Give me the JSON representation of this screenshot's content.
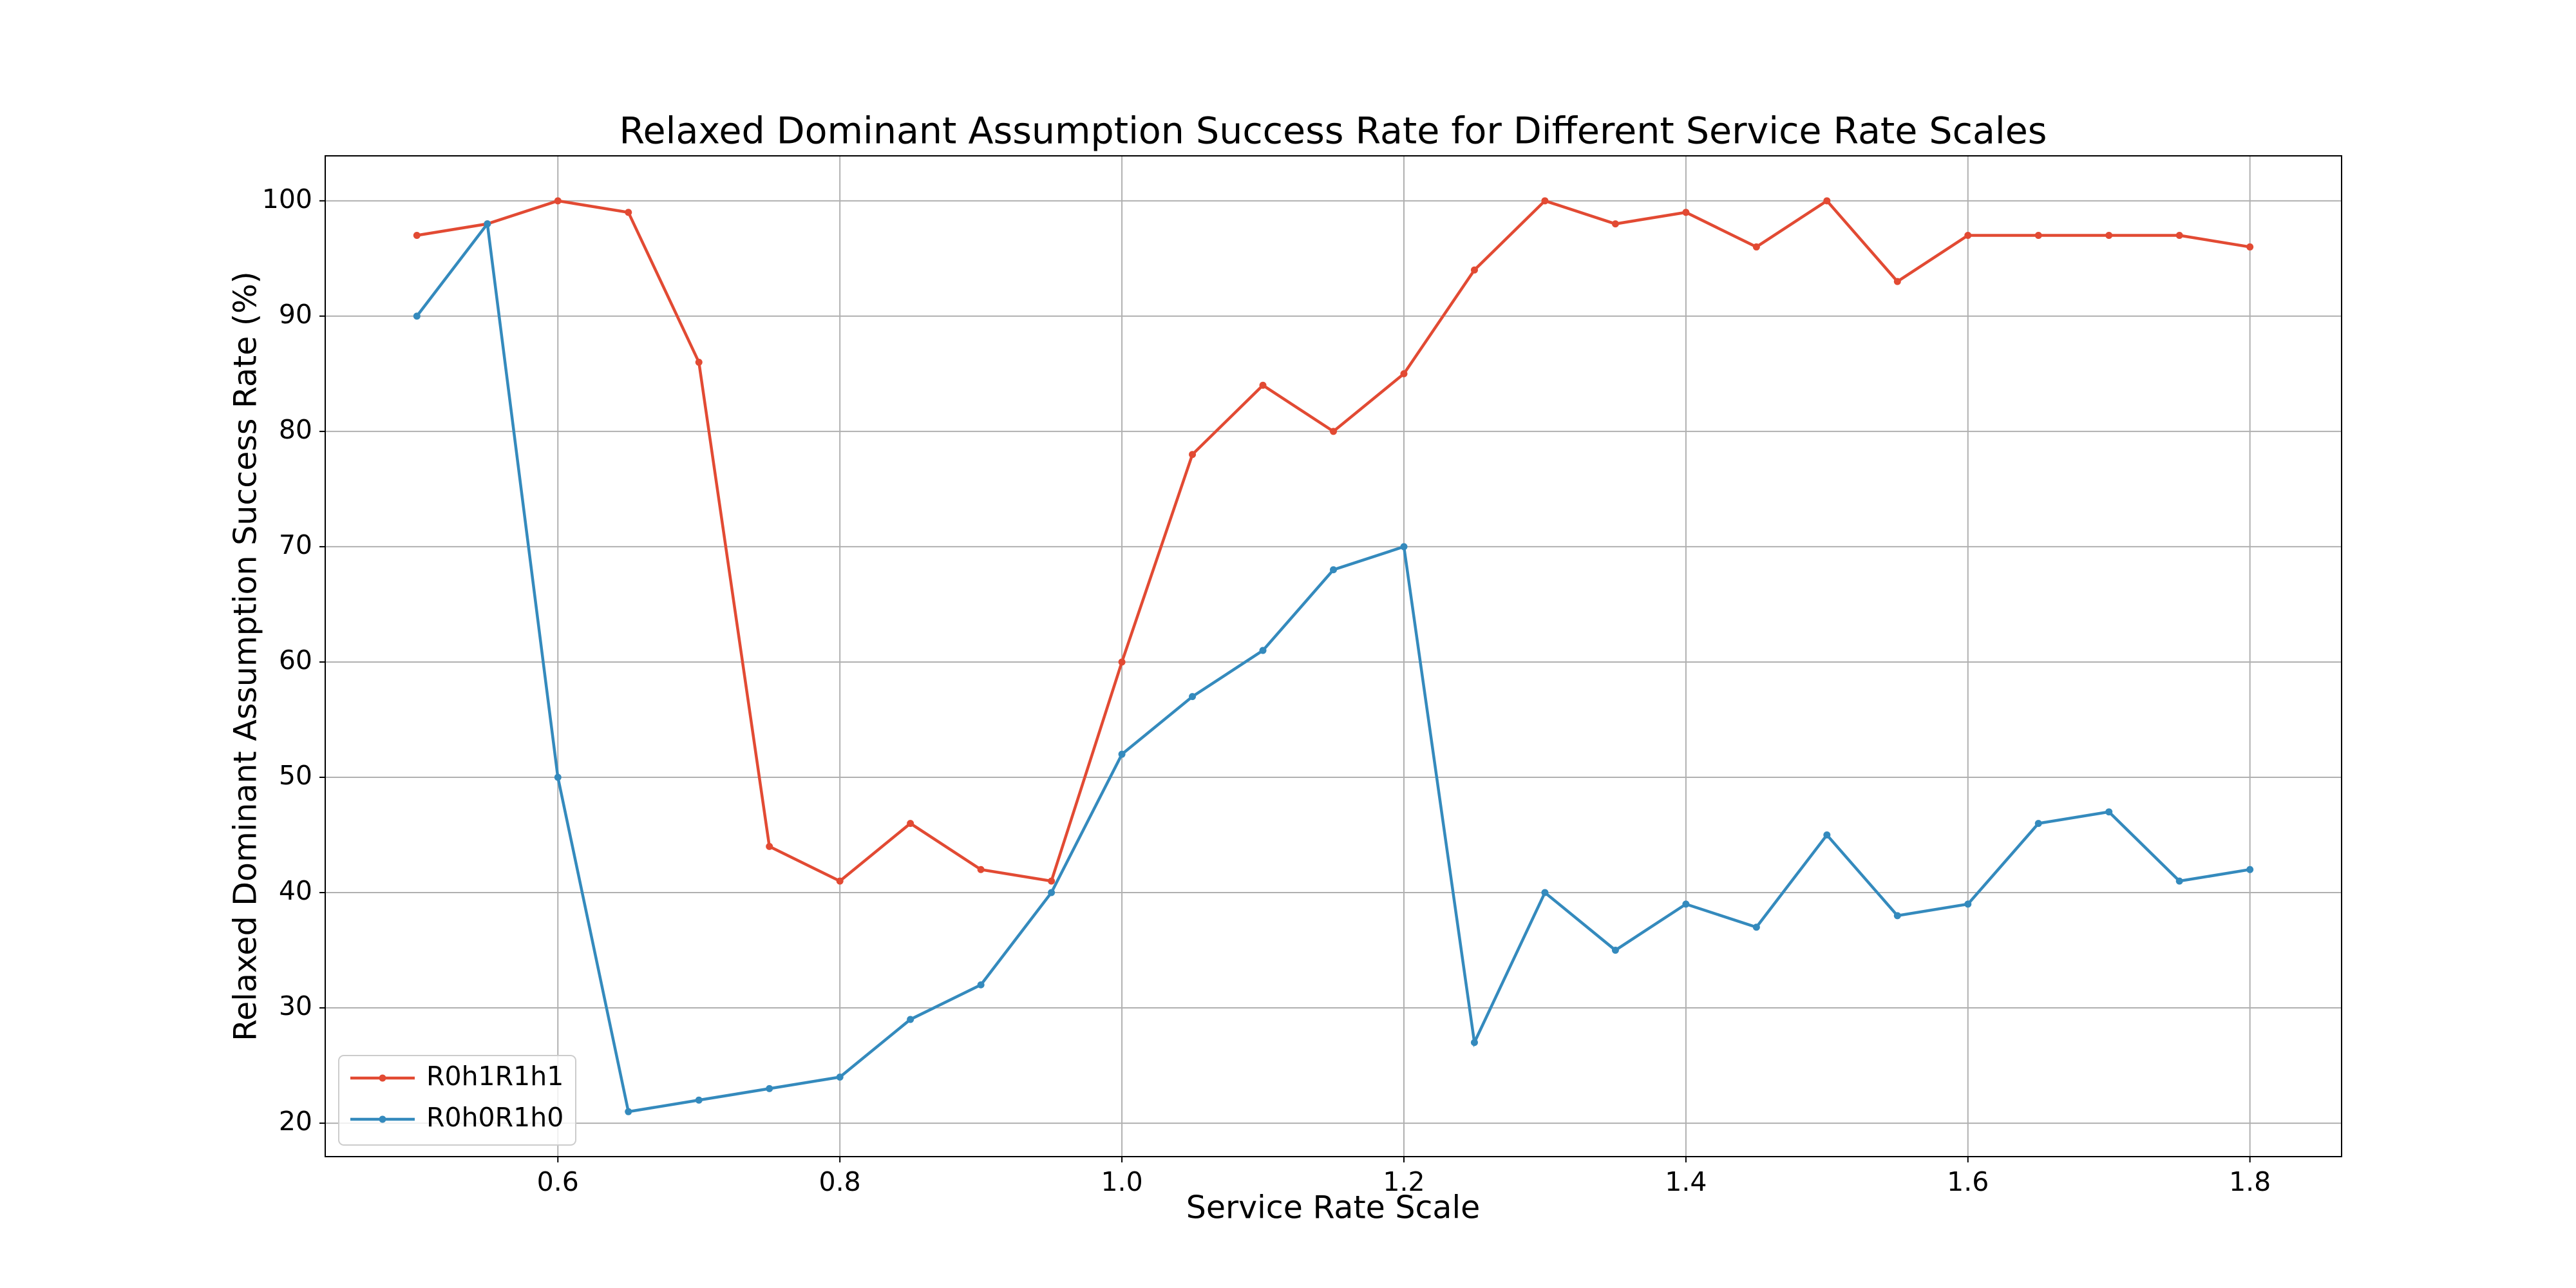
{
  "chart_data": {
    "type": "line",
    "title": "Relaxed Dominant Assumption Success Rate for Different Service Rate Scales",
    "x_label": "Service Rate Scale",
    "y_label": "Relaxed Dominant Assumption Success Rate (%)",
    "x": [
      0.5,
      0.55,
      0.6,
      0.65,
      0.7,
      0.75,
      0.8,
      0.85,
      0.9,
      0.95,
      1.0,
      1.05,
      1.1,
      1.15,
      1.2,
      1.25,
      1.3,
      1.35,
      1.4,
      1.45,
      1.5,
      1.55,
      1.6,
      1.65,
      1.7,
      1.75,
      1.8
    ],
    "series": [
      {
        "name": "R0h1R1h1",
        "color": "#e24a33",
        "values": [
          97,
          98,
          100,
          99,
          86,
          44,
          41,
          46,
          42,
          41,
          60,
          78,
          84,
          80,
          85,
          94,
          100,
          98,
          99,
          96,
          100,
          93,
          97,
          97,
          97,
          97,
          96
        ]
      },
      {
        "name": "R0h0R1h0",
        "color": "#348abd",
        "values": [
          90,
          98,
          50,
          21,
          22,
          23,
          24,
          29,
          32,
          40,
          52,
          57,
          61,
          68,
          70,
          27,
          40,
          35,
          39,
          37,
          45,
          38,
          39,
          46,
          47,
          41,
          42
        ]
      }
    ],
    "xlim": [
      0.435,
      1.865
    ],
    "ylim": [
      17.1,
      103.9
    ],
    "xticks": [
      0.6,
      0.8,
      {
        "value": 1,
        "label": "1.0"
      },
      1.2,
      1.4,
      1.6,
      1.8
    ],
    "yticks": [
      20,
      30,
      40,
      50,
      60,
      70,
      80,
      90,
      100
    ],
    "grid": true,
    "legend": "lower left"
  }
}
